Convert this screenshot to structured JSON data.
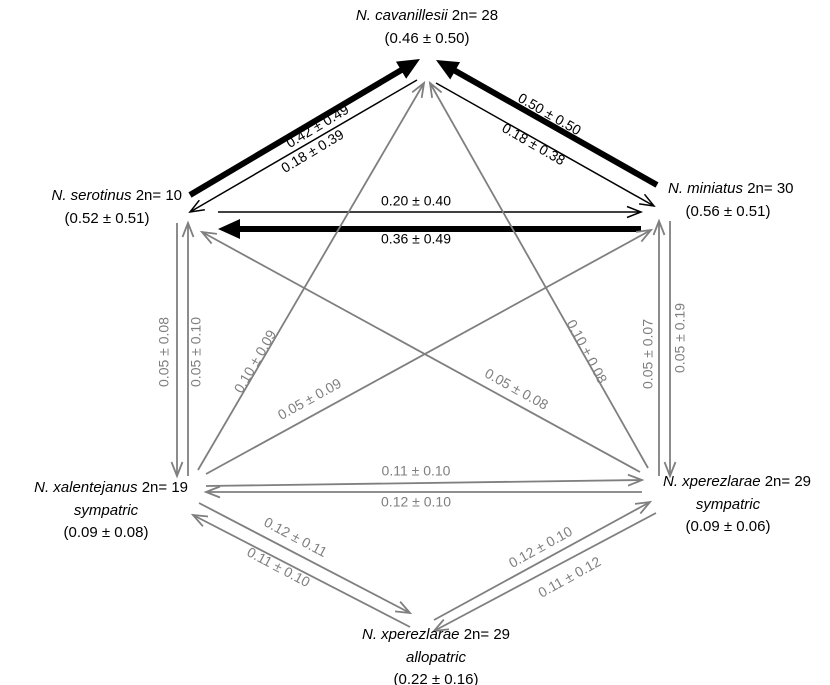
{
  "colors": {
    "strong": "#000000",
    "weak": "#7f7f7f",
    "background": "#ffffff"
  },
  "nodes": [
    {
      "id": "cav",
      "genus": "N.",
      "species": "cavanillesii",
      "chromosome": "2n= 28",
      "extra": "",
      "value": "(0.46 ± 0.50)"
    },
    {
      "id": "ser",
      "genus": "N.",
      "species": "serotinus",
      "chromosome": "2n= 10",
      "extra": "",
      "value": "(0.52 ± 0.51)"
    },
    {
      "id": "min",
      "genus": "N.",
      "species": "miniatus",
      "chromosome": "2n= 30",
      "extra": "",
      "value": "(0.56 ± 0.51)"
    },
    {
      "id": "xal",
      "genus": "N.",
      "species": "xalentejanus",
      "chromosome": "2n= 19",
      "extra": "sympatric",
      "value": "(0.09 ± 0.08)"
    },
    {
      "id": "xps",
      "genus": "N.",
      "species": "xperezlarae",
      "chromosome": "2n= 29",
      "extra": "sympatric",
      "value": "(0.09 ± 0.06)"
    },
    {
      "id": "xpa",
      "genus": "N.",
      "species": "xperezlarae",
      "chromosome": "2n= 29",
      "extra": "allopatric",
      "value": "(0.22 ± 0.16)"
    }
  ],
  "edges": [
    {
      "from": "ser",
      "to": "cav",
      "label": "0.42 ± 0.49",
      "weight": "strong"
    },
    {
      "from": "cav",
      "to": "ser",
      "label": "0.18 ± 0.39",
      "weight": "thin"
    },
    {
      "from": "min",
      "to": "cav",
      "label": "0.50 ± 0.50",
      "weight": "strong"
    },
    {
      "from": "cav",
      "to": "min",
      "label": "0.18 ± 0.38",
      "weight": "thin"
    },
    {
      "from": "ser",
      "to": "min",
      "label": "0.20 ± 0.40",
      "weight": "thin"
    },
    {
      "from": "min",
      "to": "ser",
      "label": "0.36 ± 0.49",
      "weight": "strong"
    },
    {
      "from": "ser",
      "to": "xal",
      "label": "0.05 ± 0.08",
      "weight": "weak"
    },
    {
      "from": "xal",
      "to": "ser",
      "label": "0.05 ± 0.10",
      "weight": "weak"
    },
    {
      "from": "xps",
      "to": "min",
      "label": "0.05 ± 0.07",
      "weight": "weak"
    },
    {
      "from": "min",
      "to": "xps",
      "label": "0.05 ± 0.19",
      "weight": "weak"
    },
    {
      "from": "xal",
      "to": "cav",
      "label": "0.10 ± 0.09",
      "weight": "weak"
    },
    {
      "from": "xps",
      "to": "cav",
      "label": "0.10 ± 0.08",
      "weight": "weak"
    },
    {
      "from": "xal",
      "to": "min",
      "label": "0.05 ± 0.09",
      "weight": "weak"
    },
    {
      "from": "xps",
      "to": "ser",
      "label": "0.05 ± 0.08",
      "weight": "weak"
    },
    {
      "from": "xal",
      "to": "xps",
      "label": "0.11 ± 0.10",
      "weight": "weak"
    },
    {
      "from": "xps",
      "to": "xal",
      "label": "0.12 ± 0.10",
      "weight": "weak"
    },
    {
      "from": "xal",
      "to": "xpa",
      "label": "0.12 ± 0.11",
      "weight": "weak"
    },
    {
      "from": "xpa",
      "to": "xal",
      "label": "0.11 ± 0.10",
      "weight": "weak"
    },
    {
      "from": "xpa",
      "to": "xps",
      "label": "0.12 ± 0.10",
      "weight": "weak"
    },
    {
      "from": "xps",
      "to": "xpa",
      "label": "0.11 ± 0.12",
      "weight": "weak"
    }
  ]
}
